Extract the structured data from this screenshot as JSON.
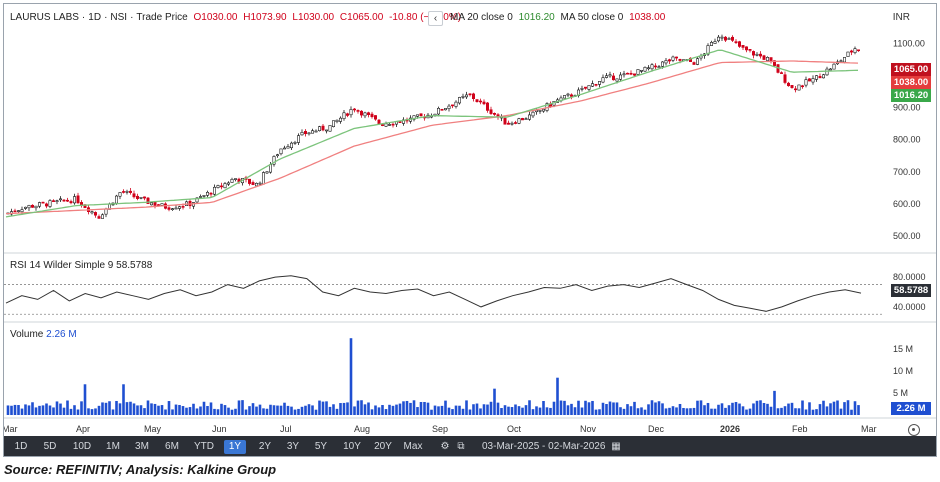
{
  "header": {
    "symbol": "LAURUS LABS",
    "interval": "1D",
    "exchange": "NSI",
    "price_type": "Trade Price",
    "open": "O1030.00",
    "high": "H1073.90",
    "low": "L1030.00",
    "close": "C1065.00",
    "change": "-10.80 (−1.00%)",
    "ma20_label": "MA 20 close 0",
    "ma20_value": "1016.20",
    "ma50_label": "MA 50 close 0",
    "ma50_value": "1038.00",
    "back_icon": "chevron-left-icon",
    "currency": "INR"
  },
  "price_tags": {
    "close": "1065.00",
    "ma50": "1038.00",
    "ma20": "1016.20"
  },
  "rsi": {
    "label": "RSI 14 Wilder Simple 9",
    "value": "58.5788"
  },
  "volume": {
    "label": "Volume",
    "value": "2.26 M"
  },
  "toolbar": {
    "buttons": [
      "1D",
      "5D",
      "10D",
      "1M",
      "3M",
      "6M",
      "YTD",
      "1Y",
      "2Y",
      "3Y",
      "5Y",
      "10Y",
      "20Y",
      "Max"
    ],
    "active": "1Y",
    "date_range": "03-Mar-2025 - 02-Mar-2026",
    "icons": [
      "settings-icon",
      "compare-icon",
      "calendar-icon"
    ]
  },
  "source": "Source: REFINITIV; Analysis: Kalkine Group",
  "colors": {
    "up": "#1a1a1a",
    "down": "#d0021b",
    "ma20": "#7cc47c",
    "ma50": "#f08080",
    "volume": "#1f4fd1",
    "close_tag": "#c0111f",
    "ma50_tag": "#e43d3d",
    "ma20_tag": "#3aa84a"
  },
  "chart_data": [
    {
      "type": "candlestick",
      "title": "LAURUS LABS",
      "x_tick_labels": [
        "Mar",
        "Apr",
        "May",
        "Jun",
        "Jul",
        "Aug",
        "Sep",
        "Oct",
        "Nov",
        "Dec",
        "2026",
        "Feb",
        "Mar"
      ],
      "y_tick_labels": [
        "500.00",
        "600.00",
        "700.00",
        "800.00",
        "900.00",
        "1000.00",
        "1100.00"
      ],
      "ylim": [
        460,
        1160
      ],
      "close_path": [
        [
          "Mar",
          570
        ],
        [
          "Mar",
          590
        ],
        [
          "Apr",
          615
        ],
        [
          "Apr",
          560
        ],
        [
          "Apr",
          640
        ],
        [
          "May",
          610
        ],
        [
          "May",
          590
        ],
        [
          "May",
          600
        ],
        [
          "Jun",
          640
        ],
        [
          "Jun",
          680
        ],
        [
          "Jun",
          660
        ],
        [
          "Jul",
          770
        ],
        [
          "Jul",
          820
        ],
        [
          "Jul",
          840
        ],
        [
          "Aug",
          900
        ],
        [
          "Aug",
          850
        ],
        [
          "Aug",
          860
        ],
        [
          "Sep",
          880
        ],
        [
          "Sep",
          940
        ],
        [
          "Oct",
          850
        ],
        [
          "Oct",
          875
        ],
        [
          "Oct",
          920
        ],
        [
          "Nov",
          950
        ],
        [
          "Nov",
          990
        ],
        [
          "Nov",
          1000
        ],
        [
          "Dec",
          1020
        ],
        [
          "Dec",
          1050
        ],
        [
          "Dec",
          1040
        ],
        [
          "2026",
          1130
        ],
        [
          "2026",
          1080
        ],
        [
          "2026",
          1050
        ],
        [
          "Feb",
          960
        ],
        [
          "Feb",
          990
        ],
        [
          "Feb",
          1040
        ],
        [
          "Mar",
          1090
        ],
        [
          "Mar",
          1065
        ]
      ],
      "ma20_path": [
        [
          "Mar",
          560
        ],
        [
          "Apr",
          595
        ],
        [
          "May",
          605
        ],
        [
          "Jun",
          620
        ],
        [
          "Jul",
          740
        ],
        [
          "Aug",
          835
        ],
        [
          "Sep",
          875
        ],
        [
          "Oct",
          870
        ],
        [
          "Nov",
          940
        ],
        [
          "Dec",
          1010
        ],
        [
          "2026",
          1080
        ],
        [
          "Feb",
          1010
        ],
        [
          "Mar",
          1016.2
        ]
      ],
      "ma50_path": [
        [
          "Mar",
          570
        ],
        [
          "Apr",
          580
        ],
        [
          "May",
          590
        ],
        [
          "Jun",
          605
        ],
        [
          "Jul",
          680
        ],
        [
          "Aug",
          780
        ],
        [
          "Sep",
          845
        ],
        [
          "Oct",
          875
        ],
        [
          "Nov",
          920
        ],
        [
          "Dec",
          975
        ],
        [
          "2026",
          1040
        ],
        [
          "Feb",
          1045
        ],
        [
          "Mar",
          1038
        ]
      ]
    },
    {
      "type": "line",
      "title": "RSI 14 Wilder Simple 9",
      "y_tick_labels": [
        "40.0000",
        "80.0000"
      ],
      "ylim": [
        25,
        95
      ],
      "reference_lines": [
        70,
        30
      ],
      "values": [
        45,
        55,
        50,
        62,
        48,
        58,
        52,
        60,
        55,
        50,
        58,
        63,
        55,
        60,
        70,
        65,
        75,
        80,
        82,
        78,
        60,
        55,
        65,
        60,
        58,
        62,
        64,
        55,
        60,
        50,
        40,
        48,
        55,
        60,
        66,
        65,
        70,
        62,
        68,
        70,
        66,
        72,
        78,
        70,
        62,
        50,
        42,
        38,
        34,
        40,
        48,
        55,
        60,
        63,
        58.58
      ]
    },
    {
      "type": "bar",
      "title": "Volume",
      "y_tick_labels": [
        "5 M",
        "10 M",
        "15 M"
      ],
      "ylim": [
        0,
        18
      ],
      "unit": "M",
      "peak_values": [
        {
          "x": "Apr",
          "value": 7
        },
        {
          "x": "Apr",
          "value": 7
        },
        {
          "x": "Jul",
          "value": 17.5
        },
        {
          "x": "Oct",
          "value": 6
        },
        {
          "x": "Oct",
          "value": 8.5
        },
        {
          "x": "2026",
          "value": 5.5
        }
      ],
      "last_value": 2.26
    }
  ]
}
